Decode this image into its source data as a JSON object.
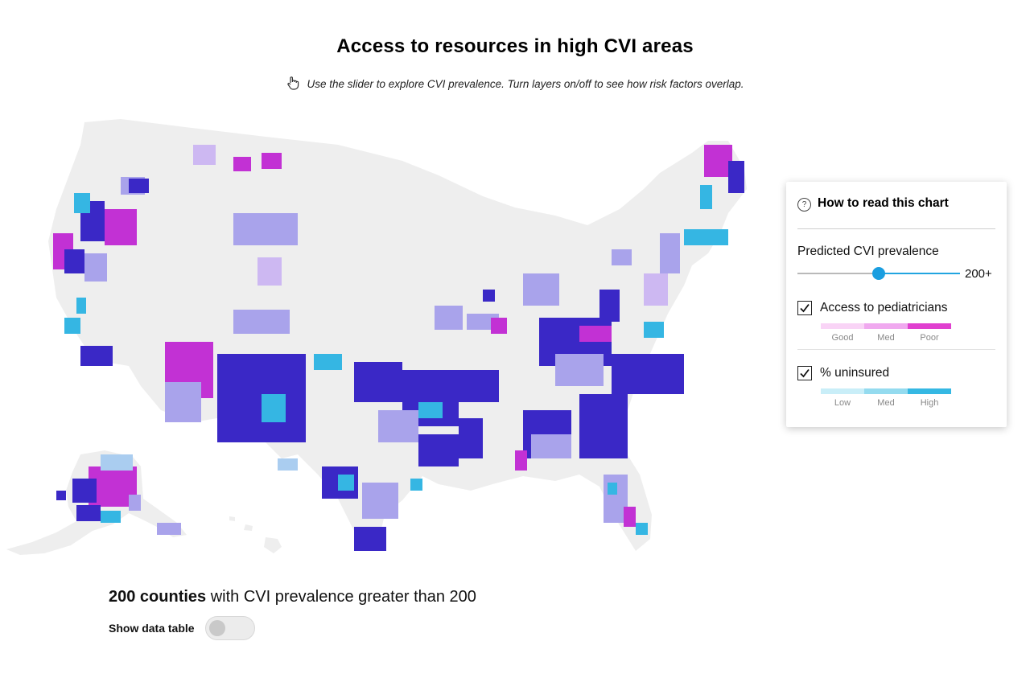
{
  "header": {
    "title": "Access to resources in high CVI areas",
    "instruction": "Use the slider to explore CVI prevalence. Turn layers on/off to see how risk factors overlap."
  },
  "legend": {
    "heading": "How to read this chart",
    "slider_label": "Predicted CVI prevalence",
    "slider_value_label": "200+",
    "slider_fraction": 0.5,
    "layers": [
      {
        "name": "Access to pediatricians",
        "checked": true,
        "scale_labels": [
          "Good",
          "Med",
          "Poor"
        ],
        "scale_colors": [
          "#f9d4f6",
          "#f0a9ef",
          "#e040cf"
        ]
      },
      {
        "name": "% uninsured",
        "checked": true,
        "scale_labels": [
          "Low",
          "Med",
          "High"
        ],
        "scale_colors": [
          "#c9eef8",
          "#94dbef",
          "#35b8e3"
        ]
      }
    ]
  },
  "summary": {
    "count_text": "200 counties",
    "rest_text": "with CVI prevalence greater than 200"
  },
  "data_table_toggle": {
    "label": "Show data table",
    "on": false
  },
  "map": {
    "region_fill": "#eeeeee",
    "colors": {
      "both": "#3a28c6",
      "poor_access": "#c231d4",
      "high_uninsured": "#35b6e3",
      "lavender": "#a9a3eb",
      "pale_violet": "#cdb8f2",
      "light_blue": "#aacdf0"
    }
  }
}
